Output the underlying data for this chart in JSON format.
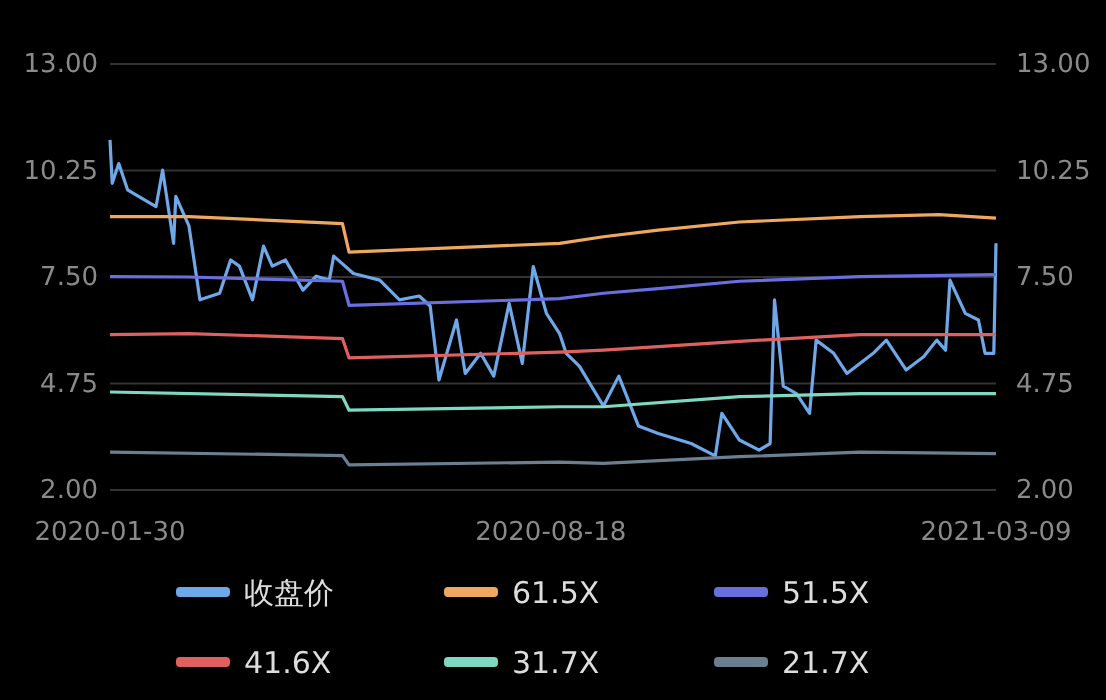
{
  "chart_data": {
    "type": "line",
    "xlim": [
      "2020-01-30",
      "2021-03-09"
    ],
    "xticks": [
      "2020-01-30",
      "2020-08-18",
      "2021-03-09"
    ],
    "ylim": [
      2,
      13
    ],
    "yticks": [
      {
        "value": 2,
        "label": "2.00"
      },
      4.75,
      {
        "value": 7.5,
        "label": "7.50"
      },
      10.25,
      {
        "value": 13,
        "label": "13.00"
      }
    ],
    "y2lim": [
      2,
      13
    ],
    "y2ticks": [
      {
        "value": 2,
        "label": "2.00"
      },
      4.75,
      {
        "value": 7.5,
        "label": "7.50"
      },
      10.25,
      {
        "value": 13,
        "label": "13.00"
      }
    ],
    "grid": "y",
    "legend": "bottom",
    "series": [
      {
        "name": "收盘价",
        "color": "#6fa8e8",
        "x": [
          "2020-01-30",
          "2020-01-31",
          "2020-02-03",
          "2020-02-07",
          "2020-02-12",
          "2020-02-20",
          "2020-02-23",
          "2020-02-28",
          "2020-02-29",
          "2020-03-06",
          "2020-03-11",
          "2020-03-20",
          "2020-03-25",
          "2020-03-29",
          "2020-04-04",
          "2020-04-09",
          "2020-04-13",
          "2020-04-19",
          "2020-04-27",
          "2020-05-03",
          "2020-05-09",
          "2020-05-11",
          "2020-05-20",
          "2020-06-01",
          "2020-06-10",
          "2020-06-19",
          "2020-06-24",
          "2020-06-28",
          "2020-07-06",
          "2020-07-10",
          "2020-07-17",
          "2020-07-23",
          "2020-07-30",
          "2020-08-05",
          "2020-08-10",
          "2020-08-16",
          "2020-08-22",
          "2020-08-25",
          "2020-08-31",
          "2020-09-11",
          "2020-09-18",
          "2020-09-27",
          "2020-10-06",
          "2020-10-21",
          "2020-11-01",
          "2020-11-04",
          "2020-11-12",
          "2020-11-21",
          "2020-11-26",
          "2020-11-28",
          "2020-12-02",
          "2020-12-08",
          "2020-12-14",
          "2020-12-17",
          "2020-12-25",
          "2020-12-31",
          "2021-01-12",
          "2021-01-18",
          "2021-01-27",
          "2021-02-04",
          "2021-02-10",
          "2021-02-14",
          "2021-02-16",
          "2021-02-23",
          "2021-03-01",
          "2021-03-04",
          "2021-03-08",
          "2021-03-09"
        ],
        "values": [
          11.04,
          9.92,
          10.43,
          9.75,
          9.58,
          9.32,
          10.26,
          8.37,
          9.58,
          8.82,
          6.91,
          7.08,
          7.94,
          7.78,
          6.91,
          8.3,
          7.78,
          7.94,
          7.16,
          7.52,
          7.42,
          8.04,
          7.59,
          7.42,
          6.91,
          7.01,
          6.75,
          4.84,
          6.39,
          5.01,
          5.53,
          4.94,
          6.82,
          5.27,
          7.77,
          6.56,
          6.04,
          5.53,
          5.2,
          4.17,
          4.94,
          3.65,
          3.46,
          3.2,
          2.88,
          3.98,
          3.29,
          3.03,
          3.2,
          6.91,
          4.68,
          4.49,
          3.98,
          5.87,
          5.53,
          5.01,
          5.53,
          5.87,
          5.1,
          5.44,
          5.87,
          5.61,
          7.42,
          6.56,
          6.39,
          5.53,
          5.53,
          8.37
        ]
      },
      {
        "name": "61.5X",
        "color": "#f0a860",
        "x": [
          "2020-01-30",
          "2020-03-06",
          "2020-05-15",
          "2020-05-18",
          "2020-08-22",
          "2020-09-11",
          "2020-10-06",
          "2020-11-12",
          "2021-01-06",
          "2021-02-11",
          "2021-03-09"
        ],
        "values": [
          9.06,
          9.06,
          8.88,
          8.14,
          8.37,
          8.54,
          8.71,
          8.92,
          9.06,
          9.11,
          9.02
        ]
      },
      {
        "name": "51.5X",
        "color": "#6a6fe0",
        "x": [
          "2020-01-30",
          "2020-03-06",
          "2020-05-15",
          "2020-05-18",
          "2020-08-22",
          "2020-09-11",
          "2020-10-06",
          "2020-11-12",
          "2021-01-06",
          "2021-03-09"
        ],
        "values": [
          7.51,
          7.5,
          7.39,
          6.77,
          6.94,
          7.08,
          7.2,
          7.39,
          7.51,
          7.56
        ]
      },
      {
        "name": "41.6X",
        "color": "#e06060",
        "x": [
          "2020-01-30",
          "2020-03-06",
          "2020-05-15",
          "2020-05-18",
          "2020-08-22",
          "2020-09-11",
          "2020-10-06",
          "2020-11-12",
          "2021-01-06",
          "2021-03-09"
        ],
        "values": [
          6.01,
          6.04,
          5.91,
          5.41,
          5.56,
          5.61,
          5.7,
          5.84,
          6.01,
          6.01
        ]
      },
      {
        "name": "31.7X",
        "color": "#7fd8c0",
        "x": [
          "2020-01-30",
          "2020-05-15",
          "2020-05-18",
          "2020-08-22",
          "2020-09-11",
          "2020-11-12",
          "2021-01-06",
          "2021-03-09"
        ],
        "values": [
          4.53,
          4.41,
          4.06,
          4.15,
          4.15,
          4.41,
          4.49,
          4.49
        ]
      },
      {
        "name": "21.7X",
        "color": "#6a8090",
        "x": [
          "2020-01-30",
          "2020-05-15",
          "2020-05-18",
          "2020-08-22",
          "2020-09-11",
          "2020-11-12",
          "2021-01-06",
          "2021-03-09"
        ],
        "values": [
          2.98,
          2.89,
          2.65,
          2.72,
          2.69,
          2.86,
          2.98,
          2.94
        ]
      }
    ]
  }
}
